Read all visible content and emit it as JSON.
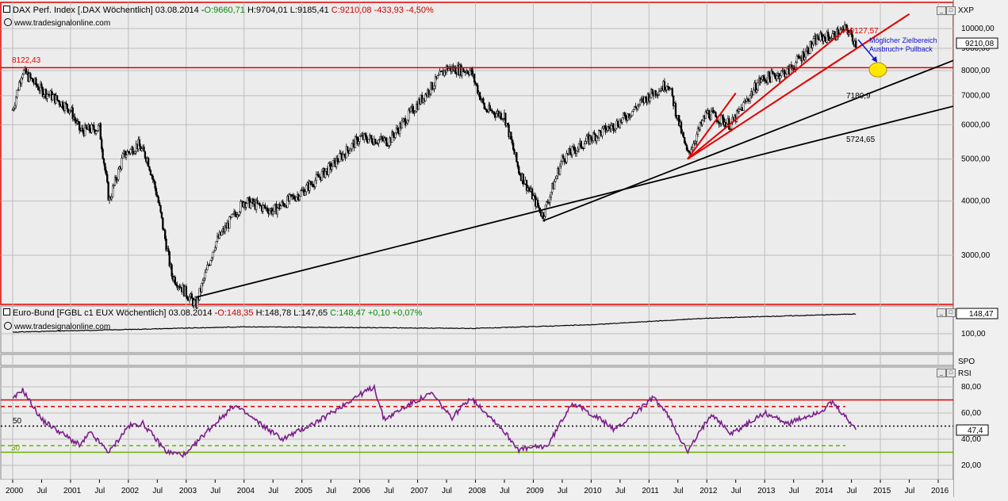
{
  "colors": {
    "background": "#f0f0f0",
    "panel_border": "#e00000",
    "candle": "#000000",
    "trend_red": "#e00000",
    "trend_black": "#000000",
    "rsi_line": "#7a1e8a",
    "rsi_upper": "#e00000",
    "rsi_lower": "#6ab000",
    "target_zone": "#ffe800",
    "annotation_blue": "#1010d0"
  },
  "main_panel": {
    "header": {
      "title": "DAX Perf. Index [.DAX  Wöchentlich] 03.08.2014 - ",
      "open": "O:9660,71",
      "high": "H:9704,01",
      "low": "L:9185,41",
      "close": "C:9210,08 -433,93 -4,50%"
    },
    "watermark": "www.tradesignalonline.com",
    "axis_label": "XXP",
    "current_value": "9210,08",
    "y_ticks": [
      "10000,00",
      "9000,00",
      "8000,00",
      "7000,00",
      "6000,00",
      "5000,00",
      "4000,00",
      "3000,00"
    ],
    "annotations": {
      "level_left": "8122,43",
      "high_label": "10127,57",
      "target_line1": "Möglicher Zielbereich",
      "target_line2": "Ausbruch+ Pullback",
      "support1": "7180,9",
      "support2": "5724,65"
    }
  },
  "bund_panel": {
    "header": {
      "title": "Euro-Bund [FGBL c1 EUX  Wöchentlich] 03.08.2014 - ",
      "open": "O:148,35",
      "high": "H:148,78",
      "low": "L:147,65",
      "close": "C:148,47 +0,10 +0,07%"
    },
    "watermark": "www.tradesignalonline.com",
    "current_value": "148,47",
    "y_ticks": [
      "100,00"
    ]
  },
  "spo_panel": {
    "label": "SPO"
  },
  "rsi_panel": {
    "label": "RSI",
    "current_value": "47,4",
    "y_ticks": [
      "80,00",
      "60,00",
      "40,00",
      "20,00"
    ],
    "level_50": "50",
    "level_30": "30"
  },
  "x_axis": {
    "labels": [
      "2000",
      "Jul",
      "2001",
      "Jul",
      "2002",
      "Jul",
      "2003",
      "Jul",
      "2004",
      "Jul",
      "2005",
      "Jul",
      "2006",
      "Jul",
      "2007",
      "Jul",
      "2008",
      "Jul",
      "2009",
      "Jul",
      "2010",
      "Jul",
      "2011",
      "Jul",
      "2012",
      "Jul",
      "2013",
      "Jul",
      "2014",
      "Jul",
      "2015",
      "Jul",
      "2016"
    ]
  },
  "chart_data": [
    {
      "type": "candlestick",
      "title": "DAX Perf. Index [.DAX  Wöchentlich]",
      "scale": "log",
      "ylim": [
        2400,
        10700
      ],
      "x_range": [
        "2000-01",
        "2016-06"
      ],
      "grid": true,
      "approx_weekly_close_path": [
        {
          "x": "2000-01",
          "y": 6500
        },
        {
          "x": "2000-03",
          "y": 8000
        },
        {
          "x": "2000-07",
          "y": 7200
        },
        {
          "x": "2000-09",
          "y": 7000
        },
        {
          "x": "2001-01",
          "y": 6500
        },
        {
          "x": "2001-03",
          "y": 5800
        },
        {
          "x": "2001-07",
          "y": 5900
        },
        {
          "x": "2001-09",
          "y": 4000
        },
        {
          "x": "2001-12",
          "y": 5100
        },
        {
          "x": "2002-03",
          "y": 5400
        },
        {
          "x": "2002-05",
          "y": 5000
        },
        {
          "x": "2002-07",
          "y": 4100
        },
        {
          "x": "2002-10",
          "y": 2700
        },
        {
          "x": "2003-03",
          "y": 2300
        },
        {
          "x": "2003-07",
          "y": 3200
        },
        {
          "x": "2004-01",
          "y": 4000
        },
        {
          "x": "2004-07",
          "y": 3800
        },
        {
          "x": "2005-01",
          "y": 4200
        },
        {
          "x": "2005-07",
          "y": 4800
        },
        {
          "x": "2006-01",
          "y": 5600
        },
        {
          "x": "2006-07",
          "y": 5500
        },
        {
          "x": "2007-01",
          "y": 6700
        },
        {
          "x": "2007-07",
          "y": 8100
        },
        {
          "x": "2007-12",
          "y": 8000
        },
        {
          "x": "2008-03",
          "y": 6500
        },
        {
          "x": "2008-07",
          "y": 6300
        },
        {
          "x": "2008-10",
          "y": 4700
        },
        {
          "x": "2009-03",
          "y": 3700
        },
        {
          "x": "2009-07",
          "y": 5000
        },
        {
          "x": "2010-01",
          "y": 5600
        },
        {
          "x": "2010-07",
          "y": 6100
        },
        {
          "x": "2011-01",
          "y": 7000
        },
        {
          "x": "2011-05",
          "y": 7500
        },
        {
          "x": "2011-09",
          "y": 5100
        },
        {
          "x": "2012-01",
          "y": 6400
        },
        {
          "x": "2012-06",
          "y": 6000
        },
        {
          "x": "2012-12",
          "y": 7600
        },
        {
          "x": "2013-06",
          "y": 8000
        },
        {
          "x": "2013-12",
          "y": 9500
        },
        {
          "x": "2014-03",
          "y": 9600
        },
        {
          "x": "2014-06",
          "y": 10000
        },
        {
          "x": "2014-08",
          "y": 9210
        }
      ],
      "horizontal_levels": [
        {
          "label": "8122,43",
          "y": 8122.43
        }
      ],
      "trendlines": [
        {
          "color": "black",
          "from": {
            "x": "2003-03",
            "y": 2400
          },
          "to": {
            "x": "2016-06",
            "y": 6700
          },
          "label": "5724,65"
        },
        {
          "color": "black",
          "from": {
            "x": "2009-03",
            "y": 3600
          },
          "to": {
            "x": "2016-06",
            "y": 8600
          },
          "label": "7180,9"
        },
        {
          "color": "red",
          "from": {
            "x": "2011-09",
            "y": 5000
          },
          "to": {
            "x": "2015-07",
            "y": 10800
          }
        },
        {
          "color": "red",
          "from": {
            "x": "2011-09",
            "y": 5000
          },
          "to": {
            "x": "2014-06",
            "y": 10000
          }
        },
        {
          "color": "red",
          "from": {
            "x": "2011-09",
            "y": 5000
          },
          "to": {
            "x": "2012-07",
            "y": 7100
          }
        }
      ]
    },
    {
      "type": "line",
      "title": "Euro-Bund [FGBL c1 EUX  Wöchentlich]",
      "y": [
        {
          "x": "2000-01",
          "y": 104
        },
        {
          "x": "2004-01",
          "y": 117
        },
        {
          "x": "2008-01",
          "y": 113
        },
        {
          "x": "2010-01",
          "y": 122
        },
        {
          "x": "2012-01",
          "y": 138
        },
        {
          "x": "2014-08",
          "y": 148.47
        }
      ]
    },
    {
      "type": "line",
      "title": "RSI",
      "ylim": [
        10,
        95
      ],
      "levels": [
        70,
        65,
        50,
        35,
        30
      ],
      "series": [
        {
          "x": "2000-01",
          "y": 70
        },
        {
          "x": "2000-03",
          "y": 78
        },
        {
          "x": "2000-07",
          "y": 55
        },
        {
          "x": "2001-03",
          "y": 35
        },
        {
          "x": "2001-05",
          "y": 45
        },
        {
          "x": "2001-09",
          "y": 30
        },
        {
          "x": "2002-01",
          "y": 50
        },
        {
          "x": "2002-04",
          "y": 52
        },
        {
          "x": "2002-09",
          "y": 30
        },
        {
          "x": "2003-01",
          "y": 28
        },
        {
          "x": "2003-05",
          "y": 45
        },
        {
          "x": "2003-11",
          "y": 66
        },
        {
          "x": "2004-05",
          "y": 50
        },
        {
          "x": "2004-09",
          "y": 40
        },
        {
          "x": "2005-05",
          "y": 55
        },
        {
          "x": "2005-12",
          "y": 72
        },
        {
          "x": "2006-04",
          "y": 80
        },
        {
          "x": "2006-06",
          "y": 55
        },
        {
          "x": "2006-12",
          "y": 68
        },
        {
          "x": "2007-04",
          "y": 75
        },
        {
          "x": "2007-08",
          "y": 56
        },
        {
          "x": "2007-12",
          "y": 72
        },
        {
          "x": "2008-06",
          "y": 50
        },
        {
          "x": "2008-10",
          "y": 32
        },
        {
          "x": "2009-04",
          "y": 35
        },
        {
          "x": "2009-09",
          "y": 68
        },
        {
          "x": "2010-03",
          "y": 55
        },
        {
          "x": "2010-06",
          "y": 47
        },
        {
          "x": "2011-02",
          "y": 72
        },
        {
          "x": "2011-05",
          "y": 58
        },
        {
          "x": "2011-09",
          "y": 30
        },
        {
          "x": "2012-02",
          "y": 60
        },
        {
          "x": "2012-06",
          "y": 44
        },
        {
          "x": "2013-01",
          "y": 60
        },
        {
          "x": "2013-06",
          "y": 52
        },
        {
          "x": "2014-01",
          "y": 62
        },
        {
          "x": "2014-03",
          "y": 68
        },
        {
          "x": "2014-08",
          "y": 47.4
        }
      ]
    }
  ]
}
